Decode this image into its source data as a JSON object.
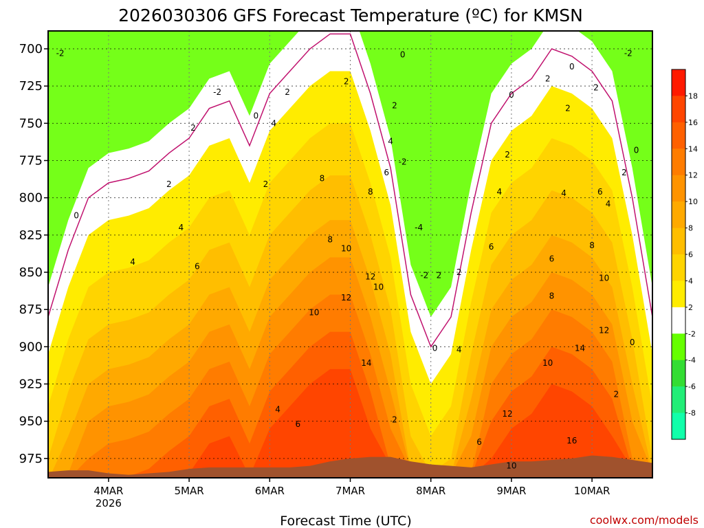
{
  "chart_data": {
    "type": "heatmap",
    "title": "2026030306 GFS Forecast Temperature (ºC) for KMSN",
    "xlabel": "Forecast Time (UTC)",
    "ylabel": "",
    "credit": "coolwx.com/models",
    "x_range_days": [
      3.25,
      10.75
    ],
    "x_ticks": [
      {
        "day": 4,
        "label": "4MAR",
        "sublabel": "2026"
      },
      {
        "day": 5,
        "label": "5MAR",
        "sublabel": ""
      },
      {
        "day": 6,
        "label": "6MAR",
        "sublabel": ""
      },
      {
        "day": 7,
        "label": "7MAR",
        "sublabel": ""
      },
      {
        "day": 8,
        "label": "8MAR",
        "sublabel": ""
      },
      {
        "day": 9,
        "label": "9MAR",
        "sublabel": ""
      },
      {
        "day": 10,
        "label": "10MAR",
        "sublabel": ""
      }
    ],
    "y_range_hpa": [
      688,
      988
    ],
    "y_ticks": [
      "700",
      "725",
      "750",
      "775",
      "800",
      "825",
      "850",
      "875",
      "900",
      "925",
      "950",
      "975"
    ],
    "colorbar": {
      "labels": [
        "18",
        "16",
        "14",
        "12",
        "10",
        "8",
        "6",
        "4",
        "2",
        "-2",
        "-4",
        "-6",
        "-8"
      ],
      "colors": [
        "#ff1a00",
        "#ff4500",
        "#ff6000",
        "#ff7c00",
        "#ff9300",
        "#ffa900",
        "#ffbe00",
        "#ffd400",
        "#ffec00",
        "#ffffff",
        "#66ff00",
        "#33dd33",
        "#22ee77",
        "#11ffaa"
      ]
    },
    "ground_color": "#a0522d",
    "time_days": [
      3.25,
      3.5,
      3.75,
      4.0,
      4.25,
      4.5,
      4.75,
      5.0,
      5.25,
      5.5,
      5.75,
      6.0,
      6.25,
      6.5,
      6.75,
      7.0,
      7.25,
      7.5,
      7.75,
      8.0,
      8.25,
      8.5,
      8.75,
      9.0,
      9.25,
      9.5,
      9.75,
      10.0,
      10.25,
      10.5,
      10.75
    ],
    "surface_pressure_hpa": [
      984,
      983,
      983,
      985,
      986,
      985,
      984,
      982,
      981,
      981,
      981,
      981,
      981,
      980,
      977,
      975,
      974,
      974,
      977,
      979,
      980,
      981,
      979,
      977,
      977,
      976,
      975,
      973,
      974,
      976,
      978
    ],
    "zero_line_hpa": [
      880,
      835,
      800,
      790,
      787,
      782,
      770,
      760,
      740,
      735,
      765,
      730,
      715,
      700,
      690,
      690,
      730,
      780,
      865,
      900,
      880,
      810,
      750,
      730,
      720,
      700,
      705,
      715,
      735,
      800,
      880
    ],
    "contour_labels": [
      {
        "text": "-2",
        "day": 3.4,
        "hpa": 703
      },
      {
        "text": "-2",
        "day": 5.35,
        "hpa": 729
      },
      {
        "text": "-2",
        "day": 7.65,
        "hpa": 776
      },
      {
        "text": "-4",
        "day": 7.85,
        "hpa": 820
      },
      {
        "text": "-2",
        "day": 7.92,
        "hpa": 852
      },
      {
        "text": "-2",
        "day": 10.45,
        "hpa": 703
      },
      {
        "text": "0",
        "day": 3.6,
        "hpa": 812
      },
      {
        "text": "0",
        "day": 5.83,
        "hpa": 745
      },
      {
        "text": "0",
        "day": 7.65,
        "hpa": 704
      },
      {
        "text": "0",
        "day": 9.0,
        "hpa": 731
      },
      {
        "text": "0",
        "day": 9.75,
        "hpa": 712
      },
      {
        "text": "0",
        "day": 10.55,
        "hpa": 768
      },
      {
        "text": "0",
        "day": 8.05,
        "hpa": 901
      },
      {
        "text": "0",
        "day": 10.5,
        "hpa": 897
      },
      {
        "text": "2",
        "day": 4.75,
        "hpa": 791
      },
      {
        "text": "2",
        "day": 5.05,
        "hpa": 753
      },
      {
        "text": "2",
        "day": 5.95,
        "hpa": 791
      },
      {
        "text": "2",
        "day": 6.22,
        "hpa": 729
      },
      {
        "text": "2",
        "day": 6.95,
        "hpa": 722
      },
      {
        "text": "2",
        "day": 7.55,
        "hpa": 738
      },
      {
        "text": "2",
        "day": 7.55,
        "hpa": 949
      },
      {
        "text": "2",
        "day": 8.1,
        "hpa": 852
      },
      {
        "text": "2",
        "day": 8.35,
        "hpa": 850
      },
      {
        "text": "2",
        "day": 8.95,
        "hpa": 771
      },
      {
        "text": "2",
        "day": 9.45,
        "hpa": 720
      },
      {
        "text": "2",
        "day": 9.7,
        "hpa": 740
      },
      {
        "text": "2",
        "day": 10.05,
        "hpa": 726
      },
      {
        "text": "2",
        "day": 10.4,
        "hpa": 783
      },
      {
        "text": "2",
        "day": 10.3,
        "hpa": 932
      },
      {
        "text": "4",
        "day": 4.3,
        "hpa": 843
      },
      {
        "text": "4",
        "day": 4.9,
        "hpa": 820
      },
      {
        "text": "4",
        "day": 6.05,
        "hpa": 750
      },
      {
        "text": "4",
        "day": 7.5,
        "hpa": 762
      },
      {
        "text": "4",
        "day": 6.1,
        "hpa": 942
      },
      {
        "text": "4",
        "day": 8.35,
        "hpa": 902
      },
      {
        "text": "4",
        "day": 8.85,
        "hpa": 796
      },
      {
        "text": "4",
        "day": 9.65,
        "hpa": 797
      },
      {
        "text": "4",
        "day": 10.2,
        "hpa": 804
      },
      {
        "text": "6",
        "day": 5.1,
        "hpa": 846
      },
      {
        "text": "6",
        "day": 6.35,
        "hpa": 952
      },
      {
        "text": "6",
        "day": 7.45,
        "hpa": 783
      },
      {
        "text": "6",
        "day": 8.75,
        "hpa": 833
      },
      {
        "text": "6",
        "day": 9.5,
        "hpa": 841
      },
      {
        "text": "6",
        "day": 10.1,
        "hpa": 796
      },
      {
        "text": "6",
        "day": 8.6,
        "hpa": 964
      },
      {
        "text": "8",
        "day": 6.65,
        "hpa": 787
      },
      {
        "text": "8",
        "day": 7.25,
        "hpa": 796
      },
      {
        "text": "8",
        "day": 6.75,
        "hpa": 828
      },
      {
        "text": "8",
        "day": 9.5,
        "hpa": 866
      },
      {
        "text": "8",
        "day": 10.0,
        "hpa": 832
      },
      {
        "text": "10",
        "day": 6.95,
        "hpa": 834
      },
      {
        "text": "10",
        "day": 6.55,
        "hpa": 877
      },
      {
        "text": "10",
        "day": 7.35,
        "hpa": 860
      },
      {
        "text": "10",
        "day": 9.45,
        "hpa": 911
      },
      {
        "text": "10",
        "day": 10.15,
        "hpa": 854
      },
      {
        "text": "10",
        "day": 9.0,
        "hpa": 980
      },
      {
        "text": "12",
        "day": 6.95,
        "hpa": 867
      },
      {
        "text": "12",
        "day": 7.25,
        "hpa": 853
      },
      {
        "text": "12",
        "day": 8.95,
        "hpa": 945
      },
      {
        "text": "12",
        "day": 10.15,
        "hpa": 889
      },
      {
        "text": "14",
        "day": 7.2,
        "hpa": 911
      },
      {
        "text": "14",
        "day": 9.85,
        "hpa": 901
      },
      {
        "text": "16",
        "day": 9.75,
        "hpa": 963
      }
    ]
  }
}
